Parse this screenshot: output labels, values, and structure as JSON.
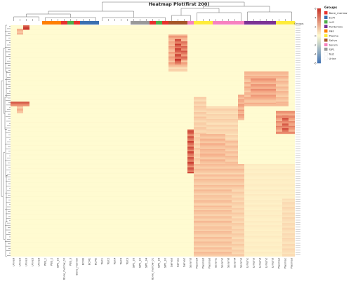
{
  "chart_data": {
    "type": "heatmap",
    "title": "Heatmap Plot(first 200)",
    "groups_label": "Groups",
    "legend_title": "Groups",
    "scale": {
      "min": -6,
      "max": 6,
      "ticks": [
        6,
        4,
        2,
        0,
        -2,
        -4,
        -6
      ]
    },
    "colors": {
      "high": "#c8362b",
      "mid_high": "#f4a582",
      "low": "#fffbd1",
      "cool": "#4575b4"
    },
    "groups": [
      {
        "name": "Bone_marrow",
        "color": "#e8312d"
      },
      {
        "name": "ECM",
        "color": "#3a6fb0"
      },
      {
        "name": "hUC",
        "color": "#4daf4a"
      },
      {
        "name": "Peritymsis",
        "color": "#7b3294"
      },
      {
        "name": "PBS",
        "color": "#ff7f00"
      },
      {
        "name": "Plasma",
        "color": "#ffec3a"
      },
      {
        "name": "Saliva",
        "color": "#a65628"
      },
      {
        "name": "Serum",
        "color": "#f781bf"
      },
      {
        "name": "SIP1",
        "color": "#999999"
      },
      {
        "name": "Test",
        "color": "#ffffff"
      },
      {
        "name": "Urine",
        "color": "#ffffff"
      }
    ],
    "columns": [
      {
        "label": "Urine8",
        "group": "Urine"
      },
      {
        "label": "Urine9",
        "group": "Urine"
      },
      {
        "label": "Urine3",
        "group": "Urine"
      },
      {
        "label": "Urine5",
        "group": "Urine"
      },
      {
        "label": "Urine6",
        "group": "Urine"
      },
      {
        "label": "PBS_1",
        "group": "PBS"
      },
      {
        "label": "PBS_2",
        "group": "PBS"
      },
      {
        "label": "SIP1_33",
        "group": "PBS"
      },
      {
        "label": "Bone_marrow_00",
        "group": "Bone_marrow"
      },
      {
        "label": "PBS_3",
        "group": "hUC"
      },
      {
        "label": "Bone_marrow",
        "group": "Bone_marrow"
      },
      {
        "label": "ECM3",
        "group": "ECM"
      },
      {
        "label": "ECM1",
        "group": "ECM"
      },
      {
        "label": "ECM2",
        "group": "ECM"
      },
      {
        "label": "Test1",
        "group": "Test"
      },
      {
        "label": "Test2",
        "group": "Test"
      },
      {
        "label": "Test4",
        "group": "Test"
      },
      {
        "label": "Test5",
        "group": "Test"
      },
      {
        "label": "Test3",
        "group": "Test"
      },
      {
        "label": "SIP1_35",
        "group": "SIP1"
      },
      {
        "label": "SIP1_32",
        "group": "SIP1"
      },
      {
        "label": "SIP1_34",
        "group": "SIP1"
      },
      {
        "label": "Bone_marrow_01",
        "group": "Bone_marrow"
      },
      {
        "label": "SIP1_36",
        "group": "hUC"
      },
      {
        "label": "SIP1_30",
        "group": "Bone_marrow"
      },
      {
        "label": "Saliva3",
        "group": "Saliva"
      },
      {
        "label": "Saliva1",
        "group": "Saliva"
      },
      {
        "label": "Saliva2",
        "group": "Saliva"
      },
      {
        "label": "Serum5",
        "group": "Serum"
      },
      {
        "label": "Plasma4",
        "group": "Plasma"
      },
      {
        "label": "Plasma5",
        "group": "Plasma"
      },
      {
        "label": "Plasma6",
        "group": "Plasma"
      },
      {
        "label": "Serum1",
        "group": "Serum"
      },
      {
        "label": "Serum2",
        "group": "Serum"
      },
      {
        "label": "Serum6",
        "group": "Serum"
      },
      {
        "label": "Serum4",
        "group": "Serum"
      },
      {
        "label": "Serum3",
        "group": "Serum"
      },
      {
        "label": "Lymph1",
        "group": "Peritymsis"
      },
      {
        "label": "Lymph3",
        "group": "Peritymsis"
      },
      {
        "label": "Lymph4",
        "group": "Peritymsis"
      },
      {
        "label": "Lymph2",
        "group": "Peritymsis"
      },
      {
        "label": "Lymph5",
        "group": "Peritymsis"
      },
      {
        "label": "Plasma2",
        "group": "Plasma"
      },
      {
        "label": "Plasma1",
        "group": "Plasma"
      },
      {
        "label": "Plasma3",
        "group": "Plasma"
      }
    ],
    "row_count": 200,
    "blocks": [
      {
        "r0": 0,
        "r1": 4,
        "c0": 2,
        "c1": 3,
        "v": 5.5
      },
      {
        "r0": 3,
        "r1": 8,
        "c0": 1,
        "c1": 2,
        "v": 2.0
      },
      {
        "r0": 8,
        "r1": 36,
        "c0": 25,
        "c1": 28,
        "v": 2.4
      },
      {
        "r0": 12,
        "r1": 34,
        "c0": 26,
        "c1": 27,
        "v": 4.6
      },
      {
        "r0": 14,
        "r1": 30,
        "c0": 27,
        "c1": 28,
        "v": 3.8
      },
      {
        "r0": 36,
        "r1": 40,
        "c0": 25,
        "c1": 28,
        "v": 1.2
      },
      {
        "r0": 40,
        "r1": 70,
        "c0": 37,
        "c1": 44,
        "v": 2.0
      },
      {
        "r0": 44,
        "r1": 62,
        "c0": 38,
        "c1": 42,
        "v": 2.6
      },
      {
        "r0": 46,
        "r1": 68,
        "c0": 42,
        "c1": 44,
        "v": 1.7
      },
      {
        "r0": 60,
        "r1": 82,
        "c0": 36,
        "c1": 37,
        "v": 2.4
      },
      {
        "r0": 62,
        "r1": 120,
        "c0": 29,
        "c1": 31,
        "v": 1.3
      },
      {
        "r0": 70,
        "r1": 120,
        "c0": 31,
        "c1": 36,
        "v": 1.1
      },
      {
        "r0": 66,
        "r1": 70,
        "c0": 0,
        "c1": 3,
        "v": 4.3
      },
      {
        "r0": 70,
        "r1": 76,
        "c0": 1,
        "c1": 2,
        "v": 2.0
      },
      {
        "r0": 74,
        "r1": 94,
        "c0": 42,
        "c1": 45,
        "v": 2.9
      },
      {
        "r0": 78,
        "r1": 92,
        "c0": 43,
        "c1": 44,
        "v": 4.0
      },
      {
        "r0": 90,
        "r1": 128,
        "c0": 28,
        "c1": 29,
        "v": 4.4
      },
      {
        "r0": 94,
        "r1": 124,
        "c0": 30,
        "c1": 34,
        "v": 1.9
      },
      {
        "r0": 100,
        "r1": 124,
        "c0": 34,
        "c1": 36,
        "v": 1.6
      },
      {
        "r0": 120,
        "r1": 200,
        "c0": 29,
        "c1": 37,
        "v": 1.6
      },
      {
        "r0": 140,
        "r1": 200,
        "c0": 35,
        "c1": 37,
        "v": 1.2
      },
      {
        "r0": 120,
        "r1": 200,
        "c0": 37,
        "c1": 45,
        "v": 0.4
      },
      {
        "r0": 150,
        "r1": 200,
        "c0": 43,
        "c1": 45,
        "v": 0.9
      }
    ]
  }
}
